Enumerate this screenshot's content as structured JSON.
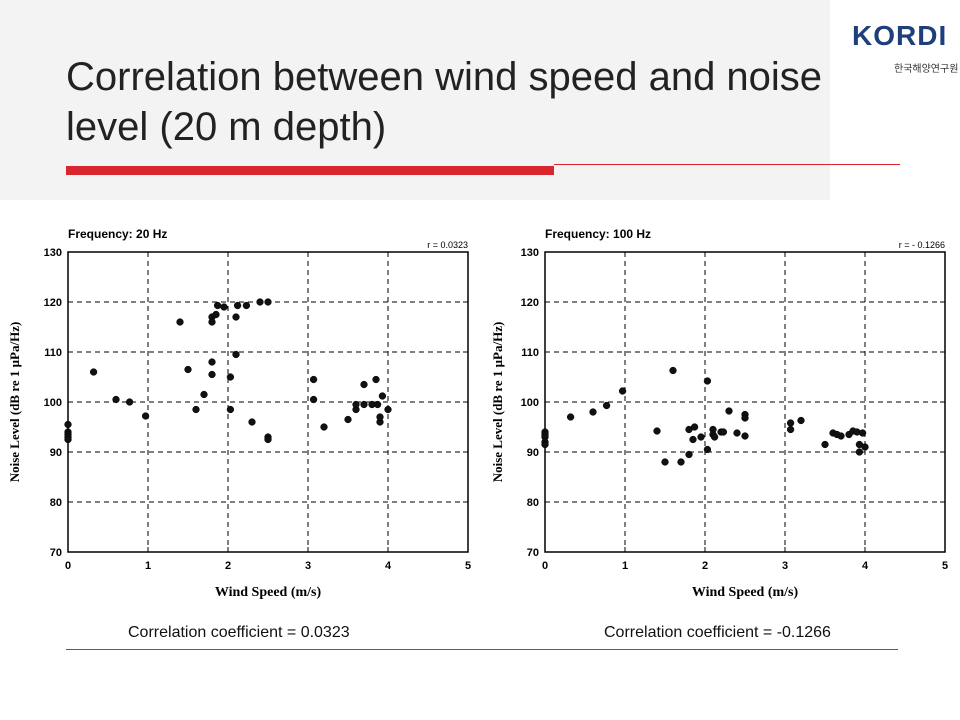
{
  "logo": {
    "text": "KORDI",
    "subtext": "한국해양연구원"
  },
  "slide": {
    "title": "Correlation between wind speed and noise level (20 m depth)"
  },
  "captions": {
    "left": "Correlation coefficient = 0.0323",
    "right": "Correlation coefficient = -0.1266"
  },
  "colors": {
    "accent": "#d7262e",
    "logo_blue": "#1f3f7a"
  },
  "chart_data": [
    {
      "type": "scatter",
      "title": "Frequency: 20 Hz",
      "annotation": "r = 0.0323",
      "xlabel": "Wind Speed (m/s)",
      "ylabel": "Noise Level (dB re 1 μPa/Hz)",
      "xlim": [
        0,
        5
      ],
      "ylim": [
        70,
        130
      ],
      "xticks": [
        "0",
        "1",
        "2",
        "3",
        "4",
        "5"
      ],
      "yticks": [
        "70",
        "80",
        "90",
        "100",
        "110",
        "120",
        "130"
      ],
      "grid": "dashed",
      "points": [
        [
          0,
          95.5
        ],
        [
          0,
          94
        ],
        [
          0,
          93.5
        ],
        [
          0,
          93
        ],
        [
          0,
          92.5
        ],
        [
          0.32,
          106
        ],
        [
          0.6,
          100.5
        ],
        [
          0.77,
          100
        ],
        [
          0.97,
          97.2
        ],
        [
          1.4,
          116
        ],
        [
          1.5,
          106.5
        ],
        [
          1.6,
          98.5
        ],
        [
          1.7,
          101.5
        ],
        [
          1.8,
          117
        ],
        [
          1.8,
          116
        ],
        [
          1.8,
          108
        ],
        [
          1.8,
          105.5
        ],
        [
          1.85,
          117.5
        ],
        [
          1.87,
          119.3
        ],
        [
          1.95,
          119
        ],
        [
          2.03,
          105
        ],
        [
          2.03,
          98.5
        ],
        [
          2.1,
          109.5
        ],
        [
          2.1,
          117
        ],
        [
          2.12,
          119.3
        ],
        [
          2.23,
          119.3
        ],
        [
          2.3,
          96
        ],
        [
          2.4,
          120
        ],
        [
          2.5,
          120
        ],
        [
          2.5,
          93
        ],
        [
          2.5,
          92.5
        ],
        [
          3.07,
          104.5
        ],
        [
          3.07,
          100.5
        ],
        [
          3.2,
          95
        ],
        [
          3.5,
          96.5
        ],
        [
          3.6,
          98.5
        ],
        [
          3.6,
          99.5
        ],
        [
          3.7,
          103.5
        ],
        [
          3.7,
          99.5
        ],
        [
          3.8,
          99.5
        ],
        [
          3.85,
          104.5
        ],
        [
          3.87,
          99.5
        ],
        [
          3.9,
          96
        ],
        [
          3.9,
          97
        ],
        [
          3.93,
          101.2
        ],
        [
          4.0,
          98.5
        ]
      ]
    },
    {
      "type": "scatter",
      "title": "Frequency: 100 Hz",
      "annotation": "r = - 0.1266",
      "xlabel": "Wind Speed (m/s)",
      "ylabel": "Noise Level (dB re 1 μPa/Hz)",
      "xlim": [
        0,
        5
      ],
      "ylim": [
        70,
        130
      ],
      "xticks": [
        "0",
        "1",
        "2",
        "3",
        "4",
        "5"
      ],
      "yticks": [
        "70",
        "80",
        "90",
        "100",
        "110",
        "120",
        "130"
      ],
      "grid": "dashed",
      "points": [
        [
          0,
          94
        ],
        [
          0,
          93.5
        ],
        [
          0,
          93
        ],
        [
          0,
          92
        ],
        [
          0,
          91.5
        ],
        [
          0.32,
          97
        ],
        [
          0.6,
          98
        ],
        [
          0.77,
          99.3
        ],
        [
          0.97,
          102.2
        ],
        [
          1.4,
          94.2
        ],
        [
          1.5,
          88
        ],
        [
          1.6,
          106.3
        ],
        [
          1.7,
          88
        ],
        [
          1.8,
          94.5
        ],
        [
          1.8,
          89.5
        ],
        [
          1.85,
          92.5
        ],
        [
          1.87,
          95
        ],
        [
          1.95,
          93
        ],
        [
          2.03,
          104.2
        ],
        [
          2.03,
          90.5
        ],
        [
          2.1,
          94.5
        ],
        [
          2.1,
          93.5
        ],
        [
          2.12,
          93
        ],
        [
          2.2,
          94
        ],
        [
          2.23,
          94
        ],
        [
          2.3,
          98.2
        ],
        [
          2.4,
          93.8
        ],
        [
          2.5,
          97.5
        ],
        [
          2.5,
          96.8
        ],
        [
          2.5,
          93.2
        ],
        [
          3.07,
          95.8
        ],
        [
          3.07,
          94.5
        ],
        [
          3.2,
          96.3
        ],
        [
          3.5,
          91.5
        ],
        [
          3.6,
          93.8
        ],
        [
          3.65,
          93.5
        ],
        [
          3.7,
          93.2
        ],
        [
          3.8,
          93.5
        ],
        [
          3.85,
          94.2
        ],
        [
          3.9,
          94
        ],
        [
          3.93,
          91.5
        ],
        [
          3.93,
          90
        ],
        [
          3.97,
          93.8
        ],
        [
          4.0,
          91
        ]
      ]
    }
  ]
}
